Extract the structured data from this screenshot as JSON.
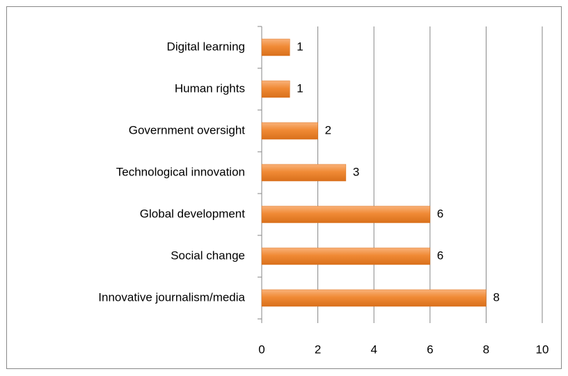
{
  "chart_data": {
    "type": "bar",
    "orientation": "horizontal",
    "categories": [
      "Digital learning",
      "Human rights",
      "Government oversight",
      "Technological innovation",
      "Global development",
      "Social change",
      "Innovative journalism/media"
    ],
    "values": [
      1,
      1,
      2,
      3,
      6,
      6,
      8
    ],
    "color": "#f08a35",
    "xlim": [
      0,
      10
    ],
    "xticks": [
      0,
      2,
      4,
      6,
      8,
      10
    ],
    "grid": true
  }
}
